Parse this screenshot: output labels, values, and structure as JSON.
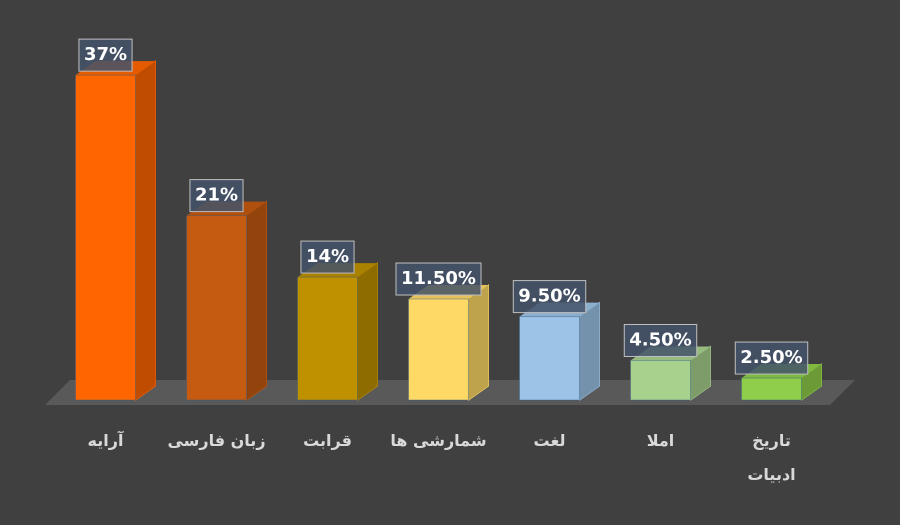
{
  "chart_data": {
    "type": "bar3d",
    "categories": [
      "آرایه",
      "زبان فارسی",
      "قرابت",
      "شمارشی ها",
      "لغت",
      "املا",
      "تاریخ ادبیات"
    ],
    "values": [
      37,
      21,
      14,
      11.5,
      9.5,
      4.5,
      2.5
    ],
    "value_labels": [
      "37%",
      "21%",
      "14%",
      "11.50%",
      "9.50%",
      "4.50%",
      "2.50%"
    ],
    "colors": [
      "#ff6600",
      "#c55a11",
      "#bf9000",
      "#ffd966",
      "#9dc3e6",
      "#a9d18e",
      "#8fce4a"
    ]
  }
}
